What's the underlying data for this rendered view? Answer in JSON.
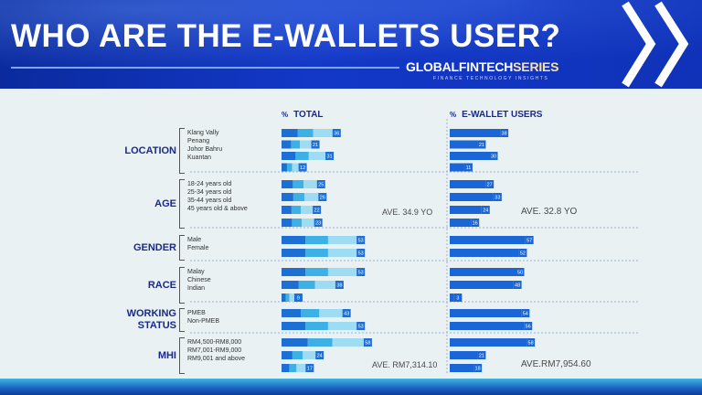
{
  "header": {
    "title": "WHO ARE THE E-WALLETS USER?",
    "brand_main": "GLOBALFINTECH",
    "brand_highlight": "SERIES",
    "tagline": "FINANCE TECHNOLOGY INSIGHTS"
  },
  "columns": {
    "percent_sign": "%",
    "total": "TOTAL",
    "ewallet": "E-WALLET USERS"
  },
  "averages": {
    "age_total": "AVE. 34.9 YO",
    "age_ewallet": "AVE. 32.8 YO",
    "mhi_total": "AVE. RM7,314.10",
    "mhi_ewallet": "AVE.RM7,954.60"
  },
  "colors": {
    "dark": "#1e6fd4",
    "mid": "#3db0e6",
    "light": "#9ddcf3",
    "ewallet": "#1a66d6",
    "category": "#1a2a8a"
  },
  "chart_data": {
    "type": "bar",
    "orientation": "horizontal",
    "groups": [
      {
        "category": "LOCATION",
        "rows": [
          {
            "label": "Klang Vally",
            "total": 36,
            "ewallet": 38
          },
          {
            "label": "Penang",
            "total": 21,
            "ewallet": 21
          },
          {
            "label": "Johor Bahru",
            "total": 31,
            "ewallet": 30
          },
          {
            "label": "Kuantan",
            "total": 12,
            "ewallet": 11
          }
        ]
      },
      {
        "category": "AGE",
        "rows": [
          {
            "label": "18-24 years old",
            "total": 25,
            "ewallet": 27
          },
          {
            "label": "25-34 years old",
            "total": 26,
            "ewallet": 33
          },
          {
            "label": "35-44 years old",
            "total": 22,
            "ewallet": 24
          },
          {
            "label": "45 years old & above",
            "total": 23,
            "ewallet": 16
          }
        ]
      },
      {
        "category": "GENDER",
        "rows": [
          {
            "label": "Male",
            "total": 53,
            "ewallet": 57
          },
          {
            "label": "Female",
            "total": 53,
            "ewallet": 52
          }
        ]
      },
      {
        "category": "RACE",
        "rows": [
          {
            "label": "Malay",
            "total": 53,
            "ewallet": 50
          },
          {
            "label": "Chinese",
            "total": 38,
            "ewallet": 48
          },
          {
            "label": "Indian",
            "total": 9,
            "ewallet": 3
          }
        ]
      },
      {
        "category": "WORKING STATUS",
        "rows": [
          {
            "label": "PMEB",
            "total": 43,
            "ewallet": 54
          },
          {
            "label": "Non-PMEB",
            "total": 53,
            "ewallet": 56
          }
        ]
      },
      {
        "category": "MHI",
        "rows": [
          {
            "label": "RM4,500-RM8,000",
            "total": 58,
            "ewallet": 58
          },
          {
            "label": "RM7,001-RM9,000",
            "total": 24,
            "ewallet": 21
          },
          {
            "label": "RM9,001 and above",
            "total": 17,
            "ewallet": 18
          }
        ]
      }
    ]
  }
}
